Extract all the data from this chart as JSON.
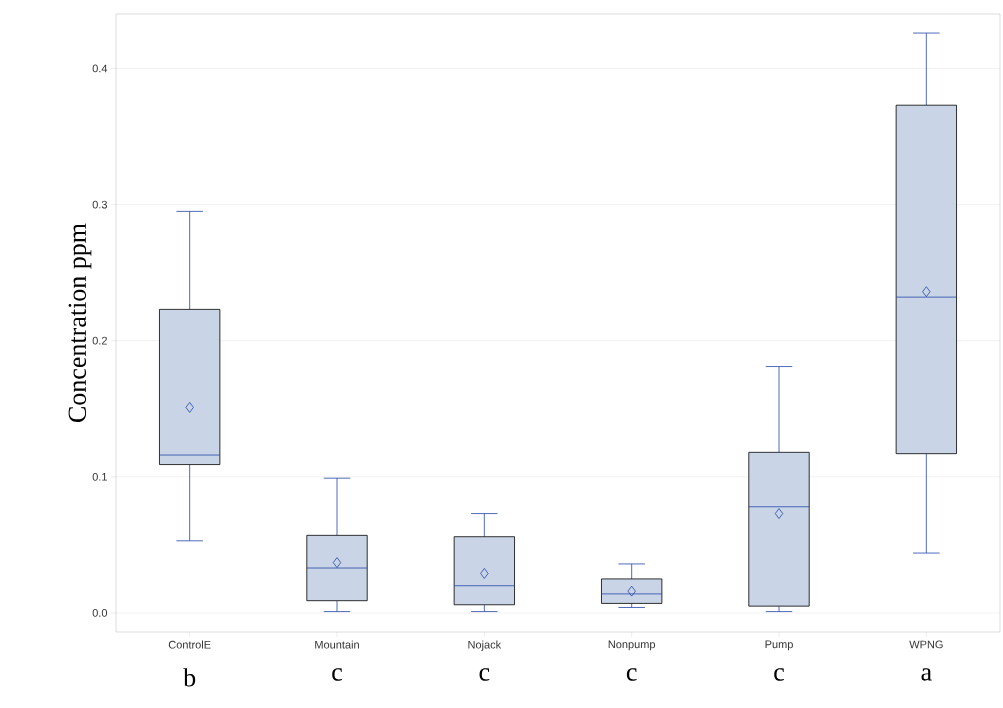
{
  "chart_data": {
    "type": "box",
    "ylabel": "Concentration  ppm",
    "categories": [
      "ControlE",
      "Mountain",
      "Nojack",
      "Nonpump",
      "Pump",
      "WPNG"
    ],
    "boxes": [
      {
        "low": 0.053,
        "q1": 0.109,
        "median": 0.116,
        "q3": 0.223,
        "high": 0.295,
        "mean": 0.151
      },
      {
        "low": 0.001,
        "q1": 0.009,
        "median": 0.033,
        "q3": 0.057,
        "high": 0.099,
        "mean": 0.037
      },
      {
        "low": 0.001,
        "q1": 0.006,
        "median": 0.02,
        "q3": 0.056,
        "high": 0.073,
        "mean": 0.029
      },
      {
        "low": 0.004,
        "q1": 0.007,
        "median": 0.014,
        "q3": 0.025,
        "high": 0.036,
        "mean": 0.016
      },
      {
        "low": 0.001,
        "q1": 0.005,
        "median": 0.078,
        "q3": 0.118,
        "high": 0.181,
        "mean": 0.073
      },
      {
        "low": 0.044,
        "q1": 0.117,
        "median": 0.232,
        "q3": 0.373,
        "high": 0.426,
        "mean": 0.236
      }
    ],
    "color": "#c9d5e6",
    "marker": "diamond",
    "grid": "y",
    "ylim": [
      -0.014,
      0.44
    ],
    "yticks": [
      {
        "value": 0,
        "label": "0.0"
      },
      0.1,
      0.2,
      0.3,
      0.4
    ],
    "annotations": [
      "b",
      "c",
      "c",
      "c",
      "c",
      "a"
    ]
  }
}
